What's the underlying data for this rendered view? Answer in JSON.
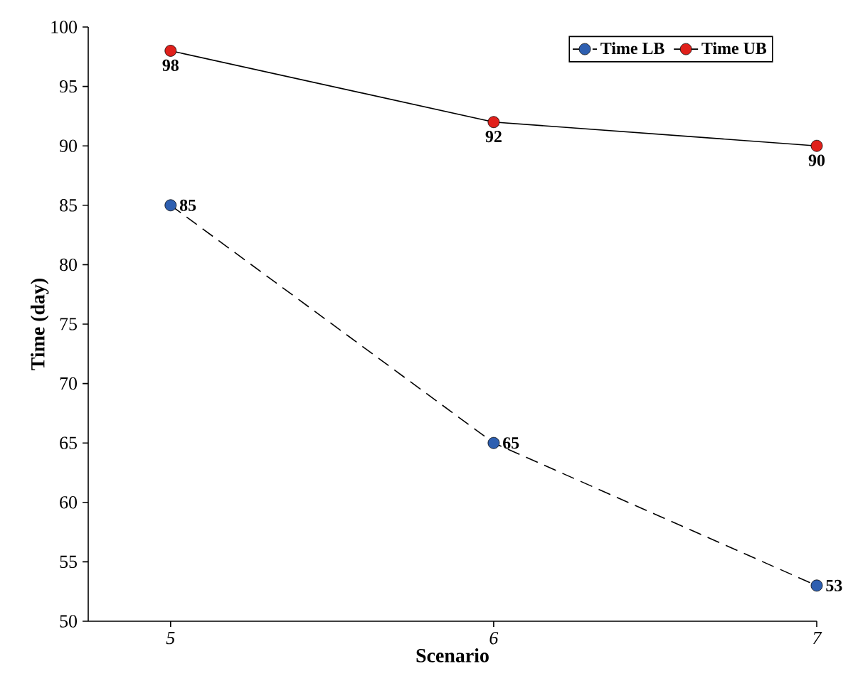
{
  "chart_data": {
    "type": "line",
    "xlabel": "Scenario",
    "ylabel": "Time (day)",
    "categories": [
      "5",
      "6",
      "7"
    ],
    "series": [
      {
        "name": "Time LB",
        "color": "#2e5fb0",
        "values": [
          85,
          65,
          53
        ],
        "line_style": "dashed"
      },
      {
        "name": "Time UB",
        "color": "#e0201b",
        "values": [
          98,
          92,
          90
        ],
        "line_style": "solid"
      }
    ],
    "ylim": [
      50,
      100
    ],
    "yticks": [
      50,
      55,
      60,
      65,
      70,
      75,
      80,
      85,
      90,
      95,
      100
    ],
    "marker": "circle",
    "data_labels": true,
    "legend": "top right",
    "grid": false
  }
}
